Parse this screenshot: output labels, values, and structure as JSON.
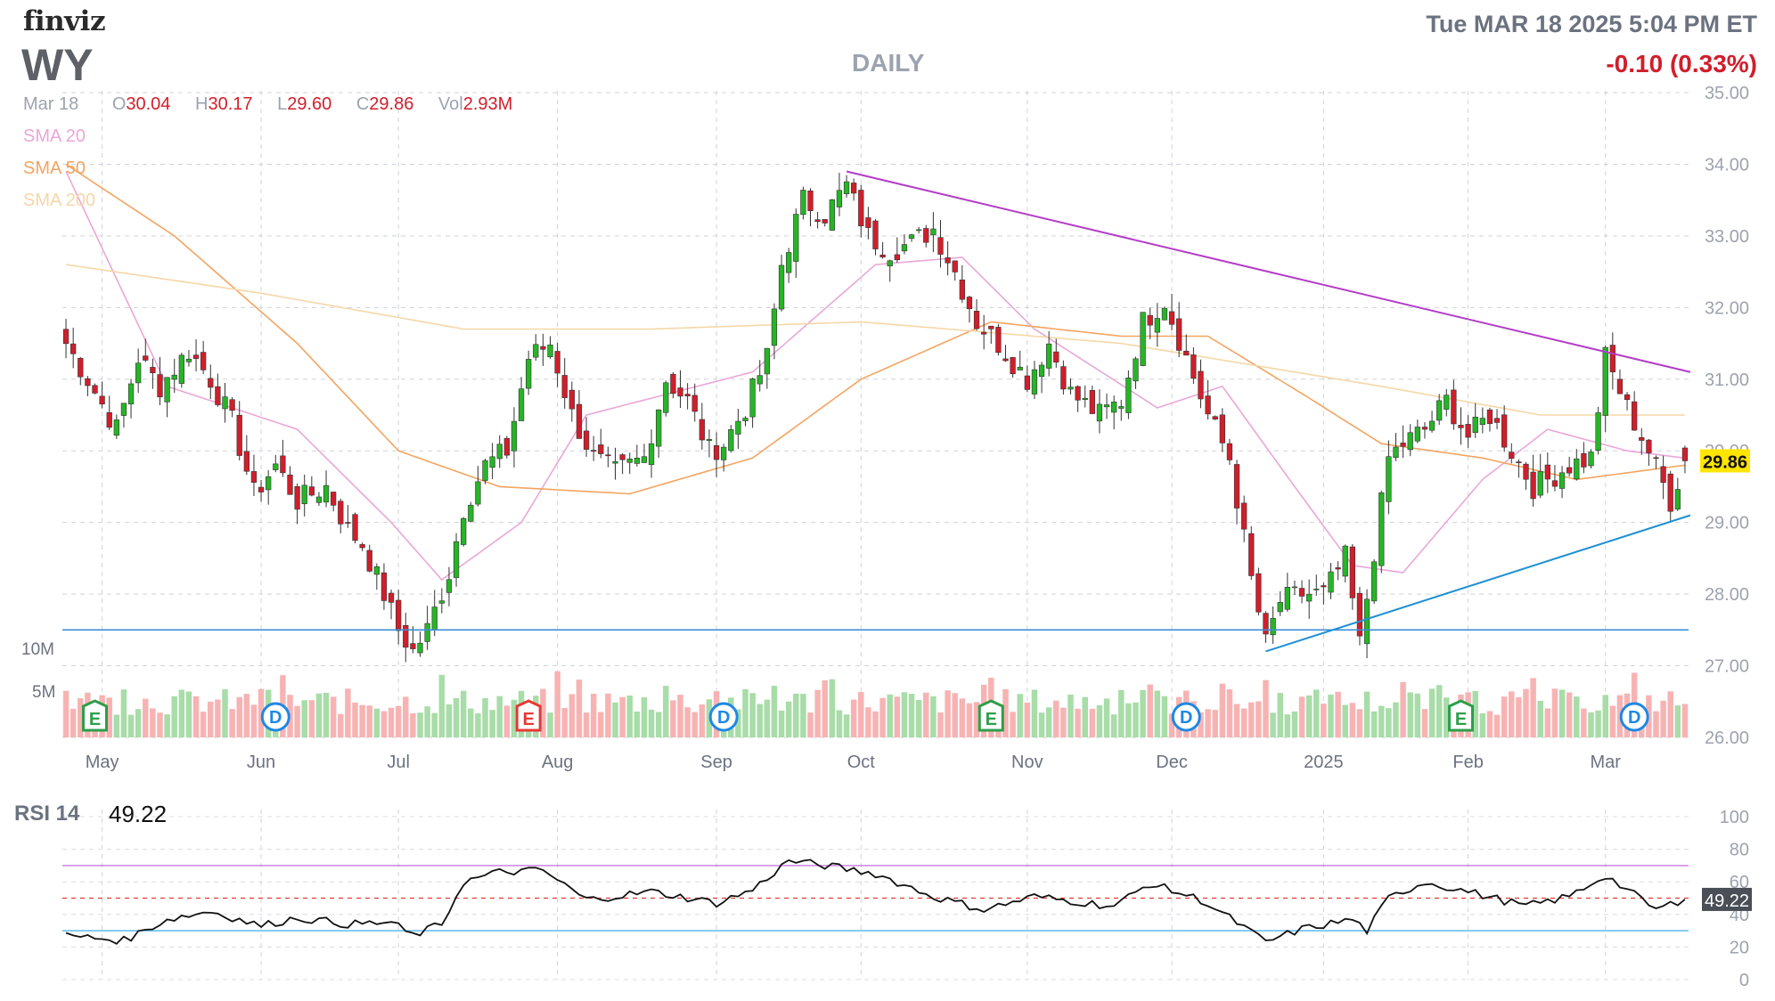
{
  "header": {
    "logo": "finviz",
    "ticker": "WY",
    "timeframe": "DAILY",
    "datetime": "Tue MAR 18 2025 5:04 PM ET",
    "change": "-0.10 (0.33%)"
  },
  "ohlc": {
    "date": "Mar 18",
    "open_label": "O",
    "open": "30.04",
    "high_label": "H",
    "high": "30.17",
    "low_label": "L",
    "low": "29.60",
    "close_label": "C",
    "close": "29.86",
    "vol_label": "Vol",
    "vol": "2.93M"
  },
  "indicators": [
    {
      "label": "SMA 20",
      "color": "#e9a7d8"
    },
    {
      "label": "SMA 50",
      "color": "#f4a460"
    },
    {
      "label": "SMA 200",
      "color": "#f5d7a8"
    }
  ],
  "rsi": {
    "label": "RSI 14",
    "value": "49.22"
  },
  "colors": {
    "up": "#26b526",
    "down": "#d11e2b",
    "vol_up": "#a8dca8",
    "vol_down": "#f7b3b3",
    "trend_top": "#b43cc8",
    "trend_bottom": "#1e90d6",
    "hline": "#3b8ed6",
    "last_price_bg": "#ffe500",
    "rsi_label_bg": "#4a4f57"
  },
  "chart_data": {
    "type": "candlestick",
    "title": "",
    "y_axis": {
      "min": 26,
      "max": 35,
      "ticks": [
        "35.00",
        "34.00",
        "33.00",
        "32.00",
        "31.00",
        "30.00",
        "29.00",
        "28.00",
        "27.00",
        "26.00"
      ]
    },
    "x_tick_labels": [
      "May",
      "Jun",
      "Jul",
      "Aug",
      "Sep",
      "Oct",
      "Nov",
      "Dec",
      "2025",
      "Feb",
      "Mar"
    ],
    "last_price": "29.86",
    "volume_axis_labels": [
      "10M",
      "5M"
    ],
    "close_anchors": [
      [
        "2024-04-24",
        31.5
      ],
      [
        "2024-04-29",
        31.0
      ],
      [
        "2024-05-03",
        30.3
      ],
      [
        "2024-05-08",
        31.3
      ],
      [
        "2024-05-13",
        30.9
      ],
      [
        "2024-05-17",
        31.4
      ],
      [
        "2024-05-22",
        31.0
      ],
      [
        "2024-05-28",
        30.4
      ],
      [
        "2024-05-31",
        29.4
      ],
      [
        "2024-06-05",
        29.8
      ],
      [
        "2024-06-10",
        29.3
      ],
      [
        "2024-06-14",
        29.5
      ],
      [
        "2024-06-19",
        28.9
      ],
      [
        "2024-06-24",
        28.7
      ],
      [
        "2024-06-27",
        28.0
      ],
      [
        "2024-07-01",
        27.5
      ],
      [
        "2024-07-03",
        27.2
      ],
      [
        "2024-07-08",
        27.5
      ],
      [
        "2024-07-11",
        28.3
      ],
      [
        "2024-07-15",
        29.2
      ],
      [
        "2024-07-18",
        29.8
      ],
      [
        "2024-07-23",
        30.0
      ],
      [
        "2024-07-26",
        31.3
      ],
      [
        "2024-07-31",
        31.5
      ],
      [
        "2024-08-05",
        30.5
      ],
      [
        "2024-08-08",
        29.9
      ],
      [
        "2024-08-13",
        29.7
      ],
      [
        "2024-08-19",
        29.9
      ],
      [
        "2024-08-22",
        31.0
      ],
      [
        "2024-08-27",
        30.7
      ],
      [
        "2024-08-30",
        30.0
      ],
      [
        "2024-09-04",
        30.1
      ],
      [
        "2024-09-09",
        30.6
      ],
      [
        "2024-09-12",
        31.3
      ],
      [
        "2024-09-16",
        32.6
      ],
      [
        "2024-09-19",
        33.5
      ],
      [
        "2024-09-24",
        33.3
      ],
      [
        "2024-09-27",
        33.7
      ],
      [
        "2024-10-02",
        33.0
      ],
      [
        "2024-10-07",
        32.8
      ],
      [
        "2024-10-10",
        32.9
      ],
      [
        "2024-10-15",
        33.1
      ],
      [
        "2024-10-18",
        32.5
      ],
      [
        "2024-10-23",
        31.8
      ],
      [
        "2024-10-28",
        31.5
      ],
      [
        "2024-11-01",
        31.0
      ],
      [
        "2024-11-06",
        31.5
      ],
      [
        "2024-11-11",
        30.8
      ],
      [
        "2024-11-15",
        30.5
      ],
      [
        "2024-11-20",
        30.7
      ],
      [
        "2024-11-25",
        31.8
      ],
      [
        "2024-11-29",
        32.1
      ],
      [
        "2024-12-04",
        31.3
      ],
      [
        "2024-12-09",
        30.5
      ],
      [
        "2024-12-12",
        29.9
      ],
      [
        "2024-12-17",
        28.2
      ],
      [
        "2024-12-19",
        27.3
      ],
      [
        "2024-12-23",
        27.9
      ],
      [
        "2024-12-27",
        28.0
      ],
      [
        "2025-01-02",
        28.0
      ],
      [
        "2025-01-07",
        28.5
      ],
      [
        "2025-01-10",
        27.3
      ],
      [
        "2025-01-14",
        28.6
      ],
      [
        "2025-01-16",
        29.9
      ],
      [
        "2025-01-21",
        30.1
      ],
      [
        "2025-01-24",
        30.3
      ],
      [
        "2025-01-29",
        30.7
      ],
      [
        "2025-02-03",
        30.2
      ],
      [
        "2025-02-06",
        30.5
      ],
      [
        "2025-02-11",
        30.0
      ],
      [
        "2025-02-14",
        29.5
      ],
      [
        "2025-02-19",
        29.6
      ],
      [
        "2025-02-24",
        29.8
      ],
      [
        "2025-02-27",
        29.9
      ],
      [
        "2025-03-03",
        31.3
      ],
      [
        "2025-03-06",
        30.6
      ],
      [
        "2025-03-11",
        30.0
      ],
      [
        "2025-03-14",
        29.3
      ],
      [
        "2025-03-18",
        29.86
      ]
    ],
    "series": [
      {
        "name": "SMA 20",
        "anchors": [
          [
            "2024-04-24",
            33.9
          ],
          [
            "2024-05-14",
            30.9
          ],
          [
            "2024-06-10",
            30.3
          ],
          [
            "2024-06-28",
            29.0
          ],
          [
            "2024-07-10",
            28.2
          ],
          [
            "2024-07-25",
            29.0
          ],
          [
            "2024-08-07",
            30.5
          ],
          [
            "2024-09-10",
            31.1
          ],
          [
            "2024-10-03",
            32.6
          ],
          [
            "2024-10-21",
            32.7
          ],
          [
            "2024-11-04",
            31.7
          ],
          [
            "2024-11-27",
            30.6
          ],
          [
            "2024-12-11",
            30.9
          ],
          [
            "2024-12-26",
            29.5
          ],
          [
            "2025-01-08",
            28.4
          ],
          [
            "2025-01-21",
            28.3
          ],
          [
            "2025-02-05",
            29.6
          ],
          [
            "2025-02-19",
            30.3
          ],
          [
            "2025-03-06",
            30.0
          ],
          [
            "2025-03-18",
            29.9
          ]
        ]
      },
      {
        "name": "SMA 50",
        "anchors": [
          [
            "2024-04-24",
            34.0
          ],
          [
            "2024-05-15",
            33.0
          ],
          [
            "2024-06-10",
            31.5
          ],
          [
            "2024-07-01",
            30.0
          ],
          [
            "2024-07-20",
            29.5
          ],
          [
            "2024-08-15",
            29.4
          ],
          [
            "2024-09-10",
            29.9
          ],
          [
            "2024-10-01",
            31.0
          ],
          [
            "2024-10-25",
            31.8
          ],
          [
            "2024-11-20",
            31.6
          ],
          [
            "2024-12-09",
            31.6
          ],
          [
            "2024-12-27",
            30.8
          ],
          [
            "2025-01-15",
            30.1
          ],
          [
            "2025-02-05",
            29.9
          ],
          [
            "2025-02-25",
            29.6
          ],
          [
            "2025-03-18",
            29.8
          ]
        ]
      },
      {
        "name": "SMA 200",
        "anchors": [
          [
            "2024-04-24",
            32.6
          ],
          [
            "2024-06-01",
            32.2
          ],
          [
            "2024-07-15",
            31.7
          ],
          [
            "2024-08-20",
            31.7
          ],
          [
            "2024-10-01",
            31.8
          ],
          [
            "2024-11-20",
            31.5
          ],
          [
            "2025-01-15",
            30.9
          ],
          [
            "2025-02-15",
            30.5
          ],
          [
            "2025-03-18",
            30.5
          ]
        ]
      }
    ],
    "rsi_series": [
      [
        "2024-04-24",
        27
      ],
      [
        "2024-05-06",
        24
      ],
      [
        "2024-05-14",
        37
      ],
      [
        "2024-05-22",
        42
      ],
      [
        "2024-06-01",
        33
      ],
      [
        "2024-06-10",
        38
      ],
      [
        "2024-06-20",
        34
      ],
      [
        "2024-06-28",
        35
      ],
      [
        "2024-07-03",
        27
      ],
      [
        "2024-07-10",
        34
      ],
      [
        "2024-07-15",
        60
      ],
      [
        "2024-07-22",
        66
      ],
      [
        "2024-07-30",
        67
      ],
      [
        "2024-08-07",
        49
      ],
      [
        "2024-08-20",
        54
      ],
      [
        "2024-09-03",
        47
      ],
      [
        "2024-09-10",
        55
      ],
      [
        "2024-09-17",
        73
      ],
      [
        "2024-09-24",
        70
      ],
      [
        "2024-10-03",
        65
      ],
      [
        "2024-10-15",
        51
      ],
      [
        "2024-10-24",
        43
      ],
      [
        "2024-11-04",
        51
      ],
      [
        "2024-11-19",
        45
      ],
      [
        "2024-11-26",
        59
      ],
      [
        "2024-12-06",
        49
      ],
      [
        "2024-12-13",
        35
      ],
      [
        "2024-12-19",
        23
      ],
      [
        "2024-12-27",
        31
      ],
      [
        "2025-01-08",
        37
      ],
      [
        "2025-01-13",
        30
      ],
      [
        "2025-01-16",
        50
      ],
      [
        "2025-01-24",
        60
      ],
      [
        "2025-02-03",
        54
      ],
      [
        "2025-02-13",
        45
      ],
      [
        "2025-02-24",
        51
      ],
      [
        "2025-03-03",
        64
      ],
      [
        "2025-03-12",
        43
      ],
      [
        "2025-03-18",
        49.22
      ]
    ],
    "rsi_axis": {
      "min": 0,
      "max": 100,
      "ticks": [
        "100",
        "80",
        "60",
        "40",
        "20",
        "0"
      ],
      "overbought": 70,
      "oversold": 30
    },
    "lines": [
      {
        "name": "upper trendline",
        "from": [
          "2024-09-27",
          33.9
        ],
        "to": [
          "2025-03-18",
          31.1
        ]
      },
      {
        "name": "lower trendline",
        "from": [
          "2024-12-19",
          27.2
        ],
        "to": [
          "2025-03-18",
          29.1
        ]
      },
      {
        "name": "horizontal support",
        "value": 27.5
      }
    ],
    "events": [
      {
        "date": "2024-04-30",
        "label": "E",
        "kind": "earnings-up"
      },
      {
        "date": "2024-06-05",
        "label": "D",
        "kind": "dividend"
      },
      {
        "date": "2024-07-26",
        "label": "E",
        "kind": "earnings-down"
      },
      {
        "date": "2024-09-04",
        "label": "D",
        "kind": "dividend"
      },
      {
        "date": "2024-10-25",
        "label": "E",
        "kind": "earnings-up"
      },
      {
        "date": "2024-12-04",
        "label": "D",
        "kind": "dividend"
      },
      {
        "date": "2025-01-31",
        "label": "E",
        "kind": "earnings-up"
      },
      {
        "date": "2025-03-07",
        "label": "D",
        "kind": "dividend"
      }
    ]
  }
}
